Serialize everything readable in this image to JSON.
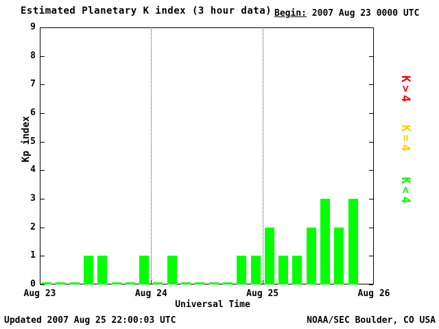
{
  "title": "Estimated Planetary K index (3 hour data)",
  "begin": {
    "label": "Begin:",
    "value": " 2007 Aug 23 0000 UTC"
  },
  "footer": {
    "updated": "Updated 2007 Aug 25 22:00:03 UTC",
    "source": "NOAA/SEC Boulder, CO USA"
  },
  "legend": [
    {
      "label": "K>4",
      "color": "#ff0000"
    },
    {
      "label": "K=4",
      "color": "#ffcc00"
    },
    {
      "label": "K<4",
      "color": "#00ff00"
    }
  ],
  "chart_data": {
    "type": "bar",
    "title": "Estimated Planetary K index (3 hour data)",
    "xlabel": "Universal Time",
    "ylabel": "Kp index",
    "ylim": [
      0,
      9
    ],
    "y_ticks": [
      0,
      1,
      2,
      3,
      4,
      5,
      6,
      7,
      8,
      9
    ],
    "x_tick_labels": [
      "Aug 23",
      "Aug 24",
      "Aug 25",
      "Aug 26"
    ],
    "interval_hours": 3,
    "slots_total": 24,
    "grid": "dotted vertical lines at interior day boundaries",
    "legend_position": "right",
    "bar_color_rules": {
      "lt4": "#00ff00",
      "eq4": "#ffcc00",
      "gt4": "#ff0000"
    },
    "series": [
      {
        "name": "Kp",
        "values": [
          0,
          0,
          0,
          1,
          1,
          0,
          0,
          1,
          0,
          1,
          0,
          0,
          0,
          0,
          1,
          1,
          2,
          1,
          1,
          2,
          3,
          2,
          3
        ]
      }
    ]
  }
}
